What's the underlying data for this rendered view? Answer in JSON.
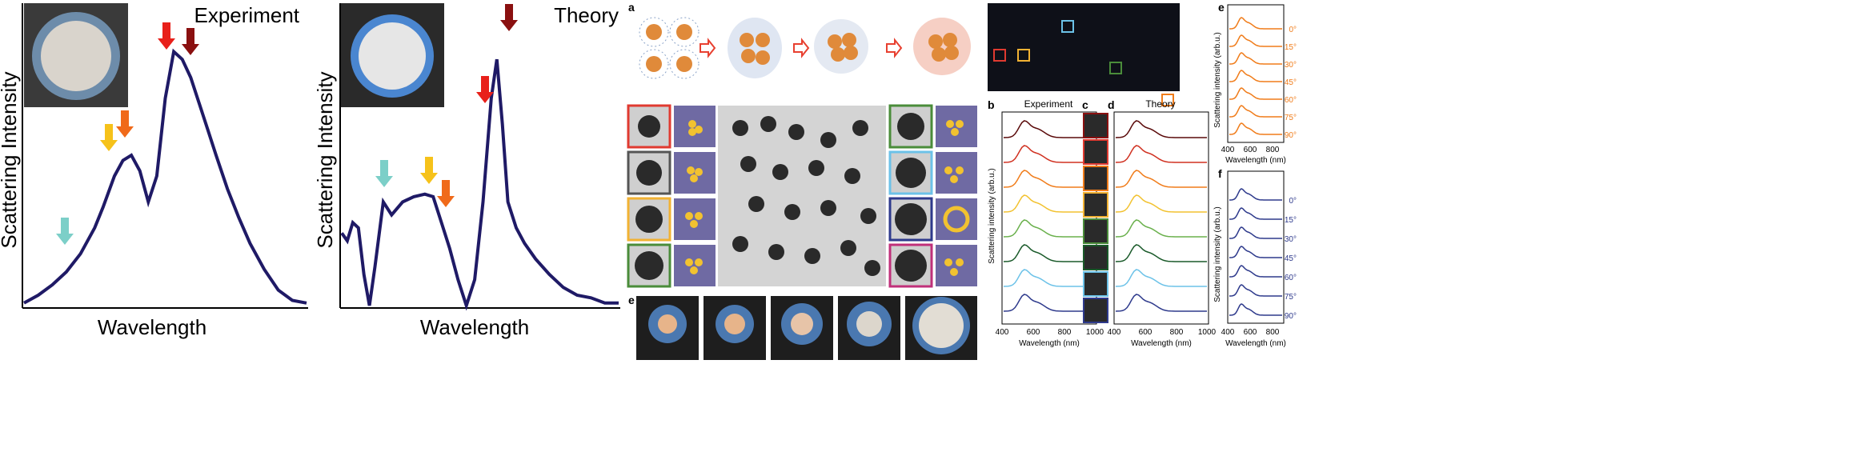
{
  "panel_experiment": {
    "title": "Experiment",
    "xlabel": "Wavelength",
    "ylabel": "Scattering Intensity"
  },
  "panel_theory": {
    "title": "Theory",
    "xlabel": "Wavelength",
    "ylabel": "Scattering Intensity"
  },
  "middle": {
    "label_a": "a",
    "label_b": "b",
    "label_c": "c",
    "label_d": "d",
    "label_e": "e",
    "colors": {
      "red": "#e03a30",
      "grey": "#555555",
      "gold": "#f2b233",
      "green": "#4a8c3a",
      "blue": "#2e3a8c",
      "magenta": "#c0307a",
      "orange": "#f07c1a",
      "lightblue": "#6cc2e8",
      "purple": "#6f6aa3",
      "arrow": "#e84030"
    }
  },
  "right": {
    "label_a": "a",
    "label_b": "b",
    "label_c": "c",
    "label_d": "d",
    "label_e": "e",
    "label_f": "f",
    "title_experiment": "Experiment",
    "title_theory": "Theory",
    "ylabel": "Scattering intensity (arb.u.)",
    "xlabel": "Wavelength (nm)",
    "xticks_bd": [
      "400",
      "600",
      "800",
      "1000"
    ],
    "xticks_ef": [
      "400",
      "600",
      "800"
    ],
    "angles": [
      "0°",
      "15°",
      "30°",
      "45°",
      "60°",
      "75°",
      "90°"
    ]
  },
  "chart_data": [
    {
      "type": "line",
      "title": "Experiment",
      "xlabel": "Wavelength",
      "ylabel": "Scattering Intensity",
      "x": [
        0,
        0.05,
        0.1,
        0.15,
        0.2,
        0.25,
        0.28,
        0.32,
        0.35,
        0.38,
        0.41,
        0.44,
        0.47,
        0.5,
        0.53,
        0.56,
        0.59,
        0.62,
        0.65,
        0.68,
        0.72,
        0.76,
        0.8,
        0.85,
        0.9,
        0.95,
        1.0
      ],
      "y": [
        0.01,
        0.04,
        0.08,
        0.13,
        0.2,
        0.3,
        0.38,
        0.5,
        0.56,
        0.58,
        0.52,
        0.4,
        0.5,
        0.8,
        0.98,
        0.95,
        0.88,
        0.78,
        0.68,
        0.58,
        0.45,
        0.34,
        0.24,
        0.14,
        0.06,
        0.02,
        0.01
      ],
      "annotations": [
        "peak markers at x≈0.15",
        "x≈0.37",
        "x≈0.41",
        "x≈0.53",
        "x≈0.6"
      ]
    },
    {
      "type": "line",
      "title": "Theory",
      "xlabel": "Wavelength",
      "ylabel": "Scattering Intensity",
      "x": [
        0,
        0.02,
        0.04,
        0.06,
        0.08,
        0.1,
        0.12,
        0.15,
        0.18,
        0.22,
        0.26,
        0.3,
        0.33,
        0.36,
        0.39,
        0.42,
        0.45,
        0.48,
        0.51,
        0.54,
        0.56,
        0.58,
        0.6,
        0.63,
        0.66,
        0.7,
        0.75,
        0.8,
        0.85,
        0.9,
        0.95,
        1.0
      ],
      "y": [
        0.28,
        0.25,
        0.32,
        0.3,
        0.12,
        0.0,
        0.15,
        0.4,
        0.35,
        0.4,
        0.42,
        0.43,
        0.42,
        0.32,
        0.22,
        0.1,
        0.0,
        0.1,
        0.4,
        0.8,
        0.95,
        0.7,
        0.4,
        0.3,
        0.24,
        0.18,
        0.12,
        0.07,
        0.04,
        0.03,
        0.01,
        0.01
      ]
    }
  ]
}
